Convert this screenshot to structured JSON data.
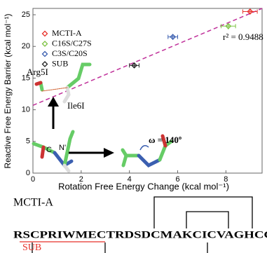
{
  "chart_data": {
    "type": "scatter",
    "xlabel": "Rotation Free Energy Change (kcal mol⁻¹)",
    "ylabel": "Reactive Free Energy Barrier (kcal mol⁻¹)",
    "xlim": [
      0,
      9.5
    ],
    "ylim": [
      0,
      26
    ],
    "xticks": [
      0,
      2,
      4,
      6,
      8
    ],
    "yticks": [
      0,
      5,
      10,
      15,
      20,
      25
    ],
    "legend": "upper left",
    "series": [
      {
        "name": "MCTI-A",
        "color": "#e8322b",
        "x": [
          9.0
        ],
        "values": [
          25.5
        ],
        "xerr": [
          0.3
        ],
        "yerr": [
          0.3
        ]
      },
      {
        "name": "C16S/C27S",
        "color": "#7dc242",
        "x": [
          8.1
        ],
        "values": [
          23.2
        ],
        "xerr": [
          0.3
        ],
        "yerr": [
          0.5
        ]
      },
      {
        "name": "C3S/C20S",
        "color": "#3b5fb0",
        "x": [
          5.8
        ],
        "values": [
          21.5
        ],
        "xerr": [
          0.2
        ],
        "yerr": [
          0.3
        ]
      },
      {
        "name": "SUB",
        "color": "#222222",
        "x": [
          4.2
        ],
        "values": [
          17.0
        ],
        "xerr": [
          0.2
        ],
        "yerr": [
          0.3
        ]
      }
    ],
    "fit": {
      "color": "#c0309a",
      "x": [
        0,
        9.5
      ],
      "values": [
        10.7,
        26.0
      ]
    },
    "annotations": {
      "r2": "r² = 0.9488",
      "arg": "Arg5I",
      "ile": "Ile6I",
      "c": "C",
      "n": "N'",
      "omega": "ω = 140º"
    },
    "sequence": {
      "name": "MCTI-A",
      "text": "RSCPRIWMECTRDSDCMAKCICVAGHCG",
      "sub": "SUB"
    }
  }
}
